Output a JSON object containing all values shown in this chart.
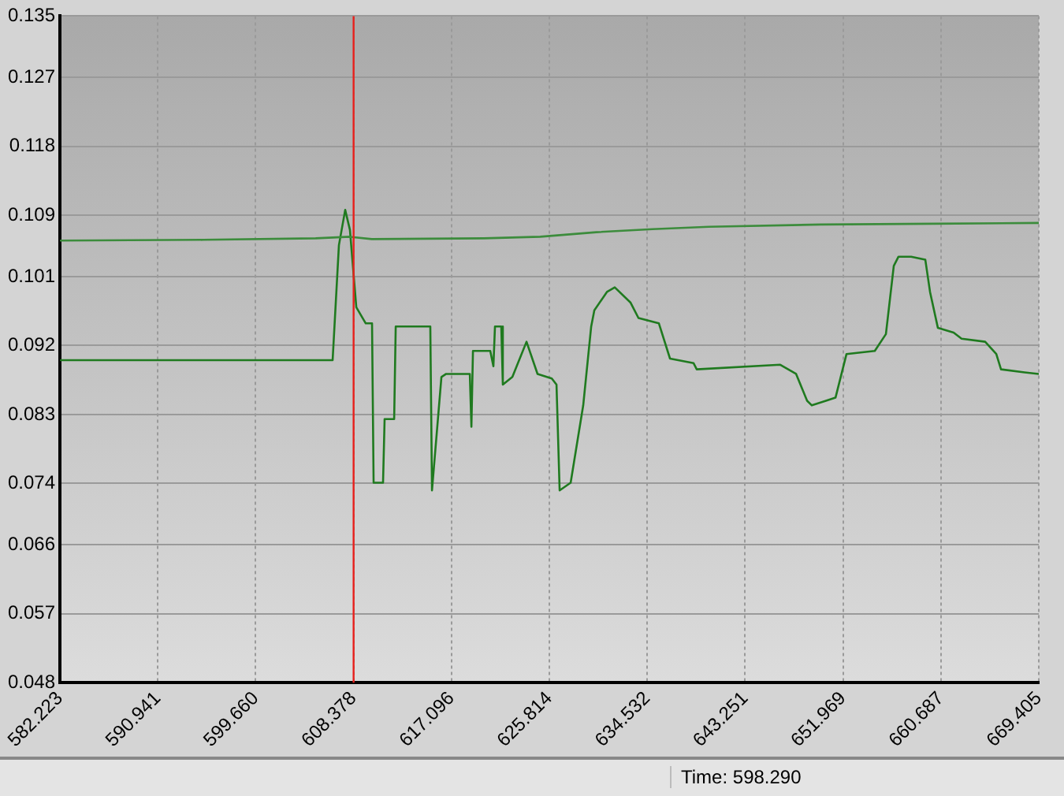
{
  "chart_data": {
    "type": "line",
    "annotations": [
      "Time: 598.290"
    ],
    "xlim": [
      582.223,
      669.405
    ],
    "xticks": [
      582.223,
      590.941,
      {
        "value": 599.66,
        "label": "599.660"
      },
      608.378,
      617.096,
      625.814,
      634.532,
      643.251,
      651.969,
      660.687,
      669.405
    ],
    "ylim": [
      0.048,
      0.135
    ],
    "yticks": [
      0.048,
      0.057,
      0.066,
      0.074,
      0.083,
      0.092,
      0.101,
      0.109,
      0.118,
      0.127,
      0.135
    ],
    "grid": true,
    "legend": false,
    "marker": "none",
    "line_style": "solid",
    "ref_lines": [
      {
        "axis": "x",
        "value": 608.378,
        "color": "#e8201c"
      }
    ],
    "series": [
      {
        "color": "#3c8c3c",
        "x": [
          582.223,
          595,
          605,
          608.05,
          610,
          620,
          625,
          630,
          635,
          640,
          650,
          660,
          669.405
        ],
        "values": [
          0.1057,
          0.1058,
          0.106,
          0.1062,
          0.1059,
          0.106,
          0.1062,
          0.1068,
          0.1072,
          0.1075,
          0.1078,
          0.1079,
          0.108
        ]
      },
      {
        "color": "#1f7a1f",
        "x": [
          582.223,
          606.51,
          607.07,
          607.63,
          608.05,
          608.62,
          609.46,
          610.02,
          610.16,
          611.0,
          611.14,
          611.99,
          612.13,
          615.21,
          615.36,
          616.2,
          616.62,
          618.73,
          618.87,
          619.01,
          620.55,
          620.83,
          620.97,
          621.53,
          621.67,
          622.52,
          623.78,
          624.76,
          626.03,
          626.45,
          626.73,
          627.71,
          628.83,
          629.54,
          629.82,
          630.94,
          631.64,
          633.05,
          633.75,
          635.57,
          636.56,
          638.66,
          638.94,
          646.38,
          647.79,
          648.77,
          649.19,
          651.3,
          652.28,
          654.8,
          655.79,
          656.49,
          656.91,
          658.04,
          659.3,
          659.72,
          660.42,
          661.82,
          662.53,
          664.63,
          665.62,
          666.04,
          668.14,
          669.405
        ],
        "values": [
          0.0901,
          0.0901,
          0.1051,
          0.1097,
          0.1071,
          0.097,
          0.0949,
          0.0949,
          0.0741,
          0.0741,
          0.0824,
          0.0824,
          0.0945,
          0.0945,
          0.0731,
          0.0879,
          0.0883,
          0.0883,
          0.0814,
          0.0913,
          0.0913,
          0.0893,
          0.0945,
          0.0945,
          0.0869,
          0.0879,
          0.0925,
          0.0883,
          0.0877,
          0.0869,
          0.0731,
          0.0741,
          0.0842,
          0.0945,
          0.0966,
          0.099,
          0.0996,
          0.0976,
          0.0956,
          0.0949,
          0.0903,
          0.0897,
          0.0889,
          0.0895,
          0.0883,
          0.0848,
          0.0842,
          0.0852,
          0.0909,
          0.0913,
          0.0935,
          0.1024,
          0.1036,
          0.1036,
          0.1032,
          0.099,
          0.0943,
          0.0937,
          0.0929,
          0.0925,
          0.0909,
          0.0889,
          0.0885,
          0.0883
        ]
      }
    ]
  }
}
